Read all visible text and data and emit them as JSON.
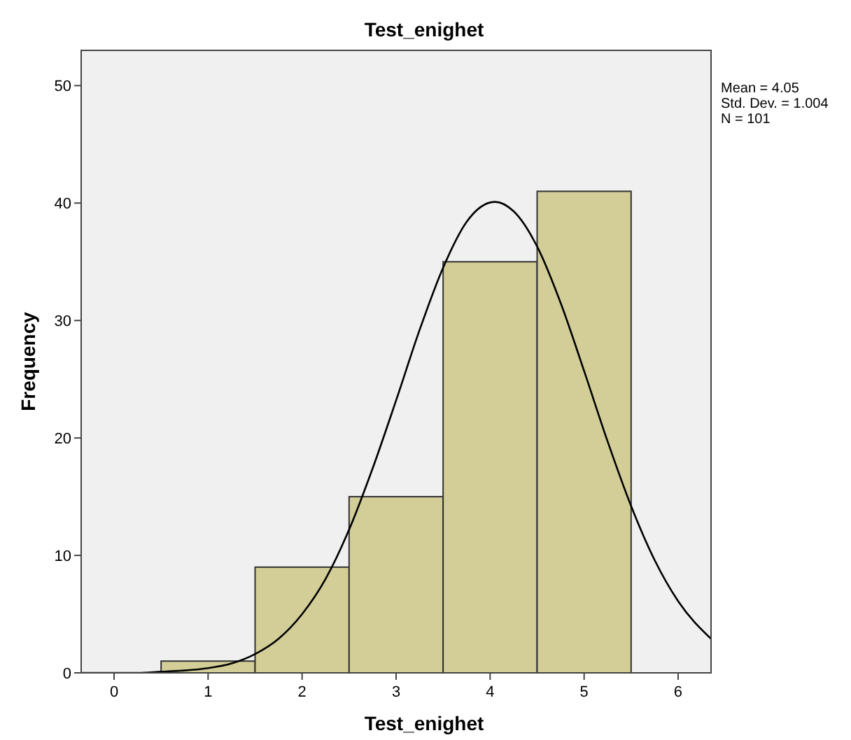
{
  "chart_data": {
    "type": "histogram",
    "title": "Test_enighet",
    "xlabel": "Test_enighet",
    "ylabel": "Frequency",
    "bins": [
      0.5,
      1.5,
      2.5,
      3.5,
      4.5,
      5.5
    ],
    "values": [
      1,
      9,
      15,
      35,
      41
    ],
    "color": "#d3ce97",
    "series": [
      {
        "type": "line",
        "color": "#000000",
        "x": [
          -0.35,
          0,
          0.25,
          0.5,
          0.75,
          1,
          1.25,
          1.5,
          1.75,
          2,
          2.25,
          2.5,
          2.75,
          3,
          3.25,
          3.5,
          3.75,
          4.05,
          4.25,
          4.5,
          4.75,
          5,
          5.25,
          5.5,
          5.75,
          6,
          6.35
        ],
        "values": [
          0,
          0,
          0,
          0.1,
          0.2,
          0.4,
          0.8,
          1.6,
          2.9,
          5,
          8,
          12.2,
          17.4,
          23.2,
          29.2,
          34.5,
          38.4,
          40.1,
          39.3,
          36.3,
          31.5,
          25.7,
          19.7,
          14.2,
          9.6,
          6.1,
          2.9
        ]
      }
    ],
    "marker": "none",
    "line_style": "solid",
    "xlim": [
      -0.35,
      6.35
    ],
    "xticks": [
      0,
      1,
      2,
      3,
      4,
      5,
      6
    ],
    "ylim": [
      0,
      53
    ],
    "yticks": [
      0,
      10,
      20,
      30,
      40,
      50
    ],
    "grid": false,
    "annotations": [
      "Mean = 4.05",
      "Std. Dev. = 1.004",
      "N = 101"
    ]
  }
}
